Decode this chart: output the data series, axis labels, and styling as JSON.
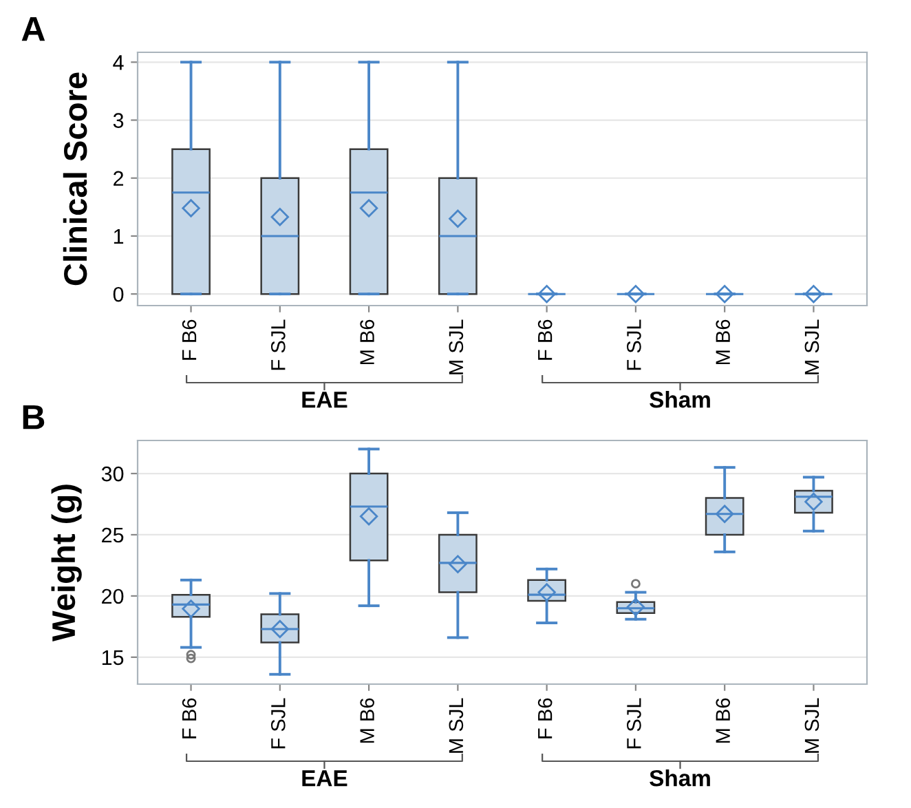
{
  "chart_data": [
    {
      "type": "box",
      "title": "A",
      "ylabel": "Clinical Score",
      "categories": [
        "F B6",
        "F SJL",
        "M B6",
        "M SJL",
        "F B6",
        "F SJL",
        "M B6",
        "M SJL"
      ],
      "annotations": [
        "EAE",
        "Sham"
      ],
      "ylim": [
        -0.2,
        4.17
      ],
      "yticks": [
        0,
        1,
        2,
        3,
        4
      ],
      "grid": "y",
      "marker": "diamond",
      "series": [
        {
          "color": "#c5d7e8",
          "boxes": [
            {
              "low": 0,
              "q1": 0,
              "median": 1.75,
              "q3": 2.5,
              "high": 4,
              "mean": 1.48
            },
            {
              "low": 0,
              "q1": 0,
              "median": 1,
              "q3": 2,
              "high": 4,
              "mean": 1.33
            },
            {
              "low": 0,
              "q1": 0,
              "median": 1.75,
              "q3": 2.5,
              "high": 4,
              "mean": 1.48
            },
            {
              "low": 0,
              "q1": 0,
              "median": 1,
              "q3": 2,
              "high": 4,
              "mean": 1.3
            },
            {
              "low": 0,
              "q1": 0,
              "median": 0,
              "q3": 0,
              "high": 0,
              "mean": 0
            },
            {
              "low": 0,
              "q1": 0,
              "median": 0,
              "q3": 0,
              "high": 0,
              "mean": 0
            },
            {
              "low": 0,
              "q1": 0,
              "median": 0,
              "q3": 0,
              "high": 0,
              "mean": 0
            },
            {
              "low": 0,
              "q1": 0,
              "median": 0,
              "q3": 0,
              "high": 0,
              "mean": 0
            }
          ]
        }
      ]
    },
    {
      "type": "box",
      "title": "B",
      "ylabel": "Weight (g)",
      "categories": [
        "F B6",
        "F SJL",
        "M B6",
        "M SJL",
        "F B6",
        "F SJL",
        "M B6",
        "M SJL"
      ],
      "annotations": [
        "EAE",
        "Sham"
      ],
      "ylim": [
        12.8,
        32.7
      ],
      "yticks": [
        15,
        20,
        25,
        30
      ],
      "grid": "y",
      "marker": "diamond",
      "series": [
        {
          "color": "#c5d7e8",
          "boxes": [
            {
              "low": 15.8,
              "q1": 18.3,
              "median": 19.3,
              "q3": 20.1,
              "high": 21.3,
              "mean": 18.95,
              "outliers": [
                15.2,
                14.9
              ]
            },
            {
              "low": 13.6,
              "q1": 16.2,
              "median": 17.3,
              "q3": 18.5,
              "high": 20.2,
              "mean": 17.3
            },
            {
              "low": 19.2,
              "q1": 22.9,
              "median": 27.3,
              "q3": 30.0,
              "high": 32.0,
              "mean": 26.5
            },
            {
              "low": 16.6,
              "q1": 20.3,
              "median": 22.7,
              "q3": 25.0,
              "high": 26.8,
              "mean": 22.6
            },
            {
              "low": 17.8,
              "q1": 19.6,
              "median": 20.1,
              "q3": 21.3,
              "high": 22.2,
              "mean": 20.3
            },
            {
              "low": 18.1,
              "q1": 18.6,
              "median": 19.0,
              "q3": 19.5,
              "high": 20.3,
              "mean": 19.1,
              "outliers": [
                21.0
              ]
            },
            {
              "low": 23.6,
              "q1": 25.0,
              "median": 26.7,
              "q3": 28.0,
              "high": 30.5,
              "mean": 26.7
            },
            {
              "low": 25.3,
              "q1": 26.8,
              "median": 28.1,
              "q3": 28.6,
              "high": 29.7,
              "mean": 27.7
            }
          ]
        }
      ]
    }
  ]
}
